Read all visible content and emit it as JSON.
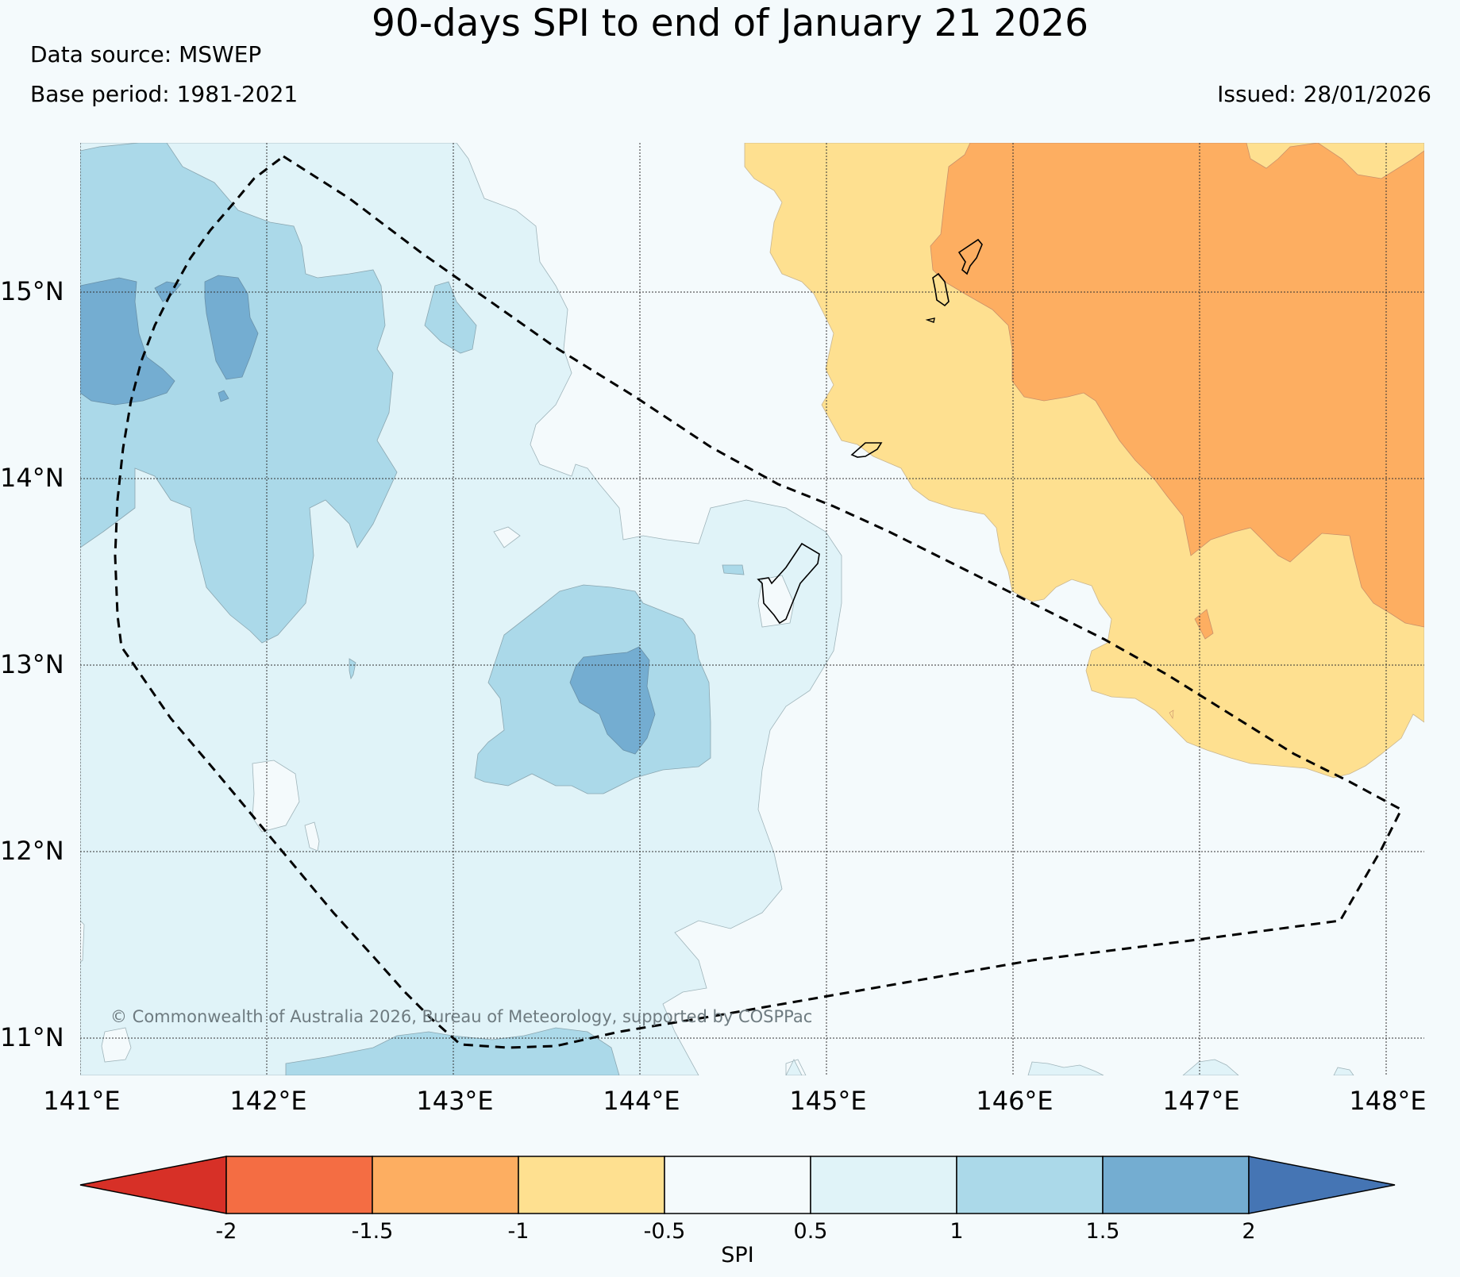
{
  "title": "90-days SPI to end of January 21 2026",
  "data_source": "Data source: MSWEP",
  "base_period": "Base period: 1981-2021",
  "issued": "Issued: 28/01/2026",
  "copyright": "© Commonwealth of Australia 2026, Bureau of Meteorology, supported by COSPPac",
  "map": {
    "lat_labels": [
      "15°N",
      "14°N",
      "13°N",
      "12°N",
      "11°N"
    ],
    "lon_labels": [
      "141°E",
      "142°E",
      "143°E",
      "144°E",
      "145°E",
      "146°E",
      "147°E",
      "148°E"
    ]
  },
  "colorbar": {
    "label": "SPI",
    "ticks": [
      "-2",
      "-1.5",
      "-1",
      "-0.5",
      "0.5",
      "1",
      "1.5",
      "2"
    ],
    "colors": {
      "below_-2": "#d73027",
      "-2_-1.5": "#f46d43",
      "-1.5_-1": "#fdae61",
      "-1_-0.5": "#fee090",
      "-0.5_0.5": "#f4fafc",
      "0.5_1": "#e0f3f8",
      "1_1.5": "#abd9e9",
      "1.5_2": "#74add1",
      "above_2": "#4575b4"
    }
  }
}
